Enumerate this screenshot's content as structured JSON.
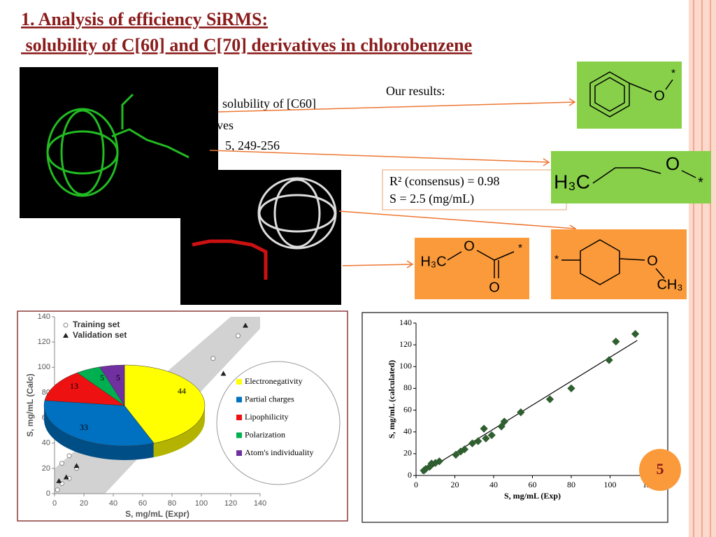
{
  "title": [
    "1. Analysis of efficiency SiRMS:",
    " solubility of C[60] and C[70] derivatives in chlorobenzene"
  ],
  "background_text": [
    "solubility of [C60]",
    "tives",
    "5, 249-256"
  ],
  "results_label": "Our results:",
  "results": [
    "R² (consensus) = 0.98",
    "S = 2.5 (mg/mL)"
  ],
  "fragments": [
    {
      "labels": [
        "O",
        "*"
      ]
    },
    {
      "labels": [
        "H₃C",
        "O",
        "*"
      ]
    },
    {
      "labels": [
        "H₃C",
        "O",
        "*",
        "O"
      ]
    },
    {
      "labels": [
        "*",
        "O",
        "CH₃"
      ]
    }
  ],
  "page_number": "5",
  "chart_data": [
    {
      "type": "scatter",
      "xlabel": "S, mg/mL (Expr)",
      "ylabel": "S, mg/mL (Calc)",
      "xlim": [
        0,
        140
      ],
      "ylim": [
        0,
        140
      ],
      "xticks": [
        0,
        20,
        40,
        60,
        80,
        100,
        120,
        140
      ],
      "yticks": [
        0,
        20,
        40,
        60,
        80,
        100,
        120,
        140
      ],
      "series": [
        {
          "name": "Training set",
          "marker": "circle",
          "color": "#888888",
          "x": [
            2,
            5,
            10,
            15,
            5,
            10,
            35,
            25,
            50,
            72,
            108,
            125
          ],
          "values": [
            3,
            8,
            12,
            20,
            24,
            30,
            32,
            45,
            30,
            45,
            107,
            125
          ]
        },
        {
          "name": "Validation set",
          "marker": "triangle",
          "color": "#222222",
          "x": [
            3,
            8,
            15,
            130,
            115
          ],
          "values": [
            10,
            13,
            22,
            133,
            95
          ]
        }
      ]
    },
    {
      "type": "pie",
      "categories": [
        "Electronegativity",
        "Partial charges",
        "Lipophilicity",
        "Polarization",
        "Atom's individuality"
      ],
      "values": [
        44,
        33,
        13,
        5,
        5
      ],
      "colors": [
        "#ffff00",
        "#0070c0",
        "#ee1111",
        "#00b050",
        "#7030a0"
      ]
    },
    {
      "type": "scatter",
      "xlabel": "S, mg/mL (Exp)",
      "ylabel": "S, mg/mL (calculated)",
      "xlim": [
        0,
        120
      ],
      "ylim": [
        0,
        140
      ],
      "xticks": [
        0,
        20,
        40,
        60,
        80,
        100,
        120
      ],
      "yticks": [
        0,
        20,
        40,
        60,
        80,
        100,
        120,
        140
      ],
      "color": "#2f5e2f",
      "x": [
        4,
        5,
        7,
        8,
        10,
        12,
        20.5,
        23,
        25,
        29,
        32,
        35,
        36,
        39,
        44,
        45.5,
        54,
        69,
        80,
        99.5,
        103,
        113
      ],
      "values": [
        4.5,
        6,
        8,
        11,
        11.5,
        13,
        19,
        22,
        24,
        29.5,
        31.5,
        43,
        34,
        37,
        45,
        49.5,
        58,
        70,
        80,
        106,
        123,
        130
      ],
      "trendline": {
        "x": [
          3,
          114
        ],
        "values": [
          2,
          124
        ]
      }
    }
  ]
}
